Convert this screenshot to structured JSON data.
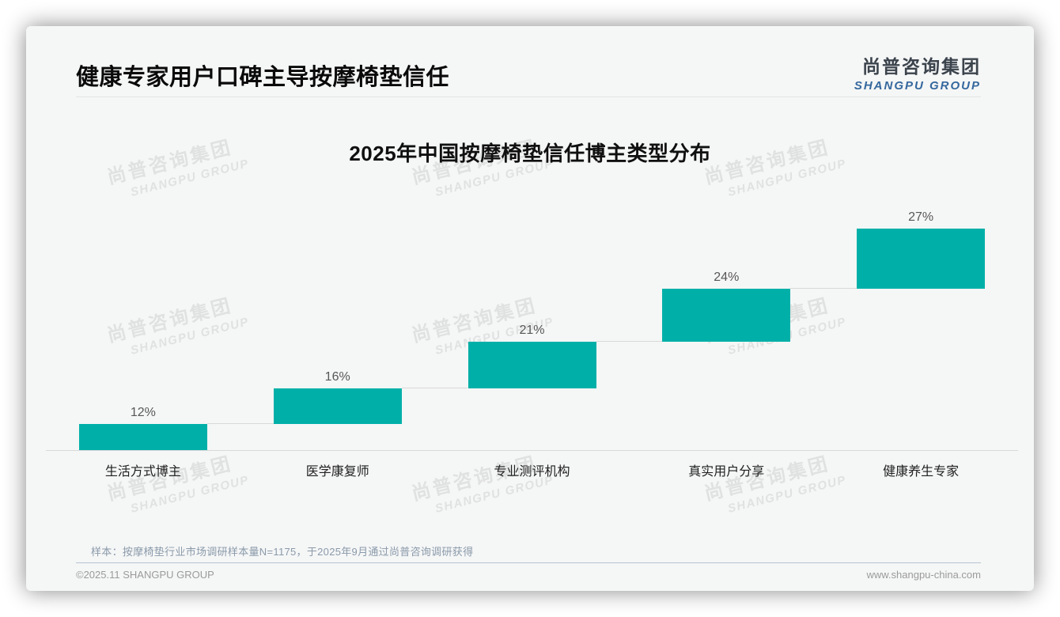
{
  "page": {
    "title": "健康专家用户口碑主导按摩椅垫信任",
    "logo": {
      "cn": "尚普咨询集团",
      "en": "SHANGPU GROUP"
    },
    "watermark": {
      "cn": "尚普咨询集团",
      "en": "SHANGPU GROUP"
    },
    "footer": {
      "sample_note": "样本：按摩椅垫行业市场调研样本量N=1175，于2025年9月通过尚普咨询调研获得",
      "copyright": "©2025.11 SHANGPU GROUP",
      "website": "www.shangpu-china.com"
    }
  },
  "colors": {
    "bar_teal": "#00b0a8",
    "logo_blue": "#35689e",
    "logo_dark": "#3b434c",
    "axis_gray": "#d9d9d9"
  },
  "chart_data": {
    "type": "bar",
    "subtype": "waterfall-steps",
    "title": "2025年中国按摩椅垫信任博主类型分布",
    "categories": [
      "生活方式博主",
      "医学康复师",
      "专业测评机构",
      "真实用户分享",
      "健康养生专家"
    ],
    "values": [
      12,
      16,
      21,
      24,
      27
    ],
    "labels": [
      "12%",
      "16%",
      "21%",
      "24%",
      "27%"
    ],
    "unit": "%",
    "cumulative": true,
    "ylim": [
      0,
      100
    ],
    "xlabel": "",
    "ylabel": "",
    "grid": false,
    "legend": null,
    "bar_color": "#00b0a8",
    "value_label_position": "above-bar",
    "connector_lines": true
  }
}
